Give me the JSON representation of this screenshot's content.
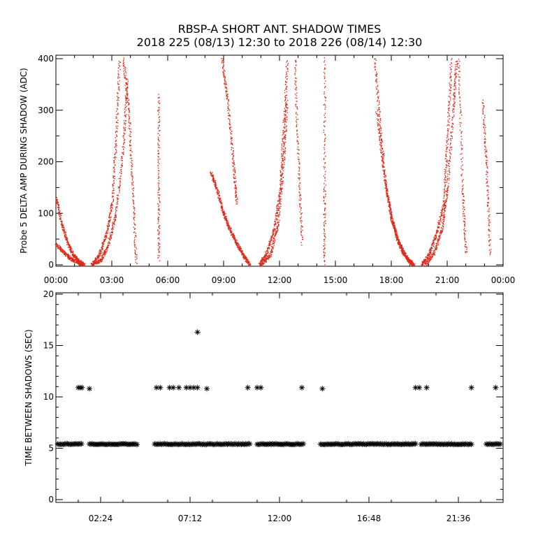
{
  "title": "RBSP-A SHORT ANT. SHADOW TIMES",
  "subtitle": "2018 225 (08/13) 12:30 to 2018 226 (08/14) 12:30",
  "colors": {
    "top_series": "#dd2a1a",
    "bottom_series": "#000000",
    "axes": "#000000"
  },
  "chart_data": [
    {
      "type": "scatter",
      "ylabel": "Probe 5 DELTA AMP DURING SHADOW (ADC)",
      "xlabel": "",
      "xlim": [
        0,
        24
      ],
      "ylim": [
        0,
        400
      ],
      "x_ticks": [
        "00:00",
        "03:00",
        "06:00",
        "09:00",
        "12:00",
        "15:00",
        "18:00",
        "21:00",
        "00:00"
      ],
      "y_ticks": [
        "0",
        "100",
        "200",
        "300",
        "400"
      ],
      "marker": "dot",
      "color": "#dd2a1a",
      "series": [
        {
          "segments": [
            {
              "x": [
                0.0,
                0.3,
                0.6,
                0.9,
                1.2,
                1.5
              ],
              "y": [
                130,
                80,
                45,
                20,
                8,
                0
              ]
            },
            {
              "x": [
                0.0,
                0.4,
                0.8,
                1.2,
                1.4
              ],
              "y": [
                40,
                25,
                12,
                5,
                0
              ]
            },
            {
              "x": [
                1.9,
                2.3,
                2.7,
                3.0,
                3.2,
                3.4
              ],
              "y": [
                0,
                20,
                60,
                120,
                240,
                400
              ]
            },
            {
              "x": [
                1.9,
                2.4,
                2.8,
                3.2,
                3.6,
                3.8
              ],
              "y": [
                0,
                10,
                40,
                100,
                230,
                360
              ]
            },
            {
              "x": [
                3.6,
                3.9,
                4.1,
                4.3
              ],
              "y": [
                400,
                300,
                150,
                0
              ]
            },
            {
              "x": [
                5.5,
                5.5,
                5.5
              ],
              "y": [
                330,
                150,
                10
              ]
            },
            {
              "x": [
                8.3,
                8.6,
                8.9,
                9.2,
                9.5,
                9.8,
                10.1,
                10.4
              ],
              "y": [
                180,
                150,
                110,
                80,
                55,
                35,
                15,
                0
              ]
            },
            {
              "x": [
                8.9,
                9.2,
                9.5,
                9.7
              ],
              "y": [
                400,
                320,
                200,
                120
              ]
            },
            {
              "x": [
                10.9,
                11.3,
                11.7,
                12.0,
                12.2,
                12.4
              ],
              "y": [
                0,
                25,
                70,
                140,
                260,
                400
              ]
            },
            {
              "x": [
                11.0,
                11.5,
                11.9,
                12.2,
                12.4
              ],
              "y": [
                0,
                20,
                80,
                200,
                320
              ]
            },
            {
              "x": [
                12.8,
                13.0,
                13.2
              ],
              "y": [
                400,
                200,
                40
              ]
            },
            {
              "x": [
                14.4,
                14.4,
                14.4
              ],
              "y": [
                400,
                150,
                0
              ]
            },
            {
              "x": [
                17.1,
                17.4,
                17.7,
                18.0,
                18.3,
                18.6,
                18.9,
                19.2
              ],
              "y": [
                400,
                260,
                150,
                90,
                50,
                25,
                10,
                0
              ]
            },
            {
              "x": [
                17.2,
                17.6,
                18.0,
                18.4,
                18.8,
                19.2
              ],
              "y": [
                300,
                170,
                90,
                45,
                15,
                0
              ]
            },
            {
              "x": [
                19.6,
                20.0,
                20.4,
                20.8,
                21.0,
                21.2
              ],
              "y": [
                0,
                20,
                60,
                120,
                250,
                400
              ]
            },
            {
              "x": [
                19.8,
                20.3,
                20.7,
                21.0,
                21.3,
                21.5
              ],
              "y": [
                0,
                25,
                70,
                150,
                300,
                400
              ]
            },
            {
              "x": [
                21.6,
                21.8,
                22.0
              ],
              "y": [
                400,
                150,
                20
              ]
            },
            {
              "x": [
                22.9,
                23.1,
                23.3
              ],
              "y": [
                320,
                180,
                20
              ]
            }
          ]
        }
      ]
    },
    {
      "type": "scatter",
      "ylabel": "TIME BETWEEN SHADOWS (SEC)",
      "xlabel": "",
      "xlim": [
        0,
        24
      ],
      "ylim": [
        0,
        20
      ],
      "x_ticks": [
        "02:24",
        "07:12",
        "12:00",
        "16:48",
        "21:36"
      ],
      "y_ticks": [
        "0",
        "5",
        "10",
        "15",
        "20"
      ],
      "marker": "asterisk",
      "color": "#000000",
      "series": [
        {
          "baseline": {
            "y": 5.4,
            "ranges": [
              [
                0.1,
                1.4
              ],
              [
                1.8,
                4.4
              ],
              [
                5.3,
                10.4
              ],
              [
                10.8,
                13.3
              ],
              [
                14.2,
                19.3
              ],
              [
                19.6,
                22.3
              ],
              [
                23.1,
                23.9
              ]
            ]
          }
        },
        {
          "x": [
            1.2,
            1.3,
            1.4,
            1.8,
            5.4,
            5.6,
            6.1,
            6.3,
            6.6,
            7.0,
            7.2,
            7.4,
            7.6,
            8.1,
            10.3,
            10.8,
            11.0,
            13.2,
            14.3,
            19.3,
            19.5,
            19.9,
            22.3,
            23.6
          ],
          "y": [
            10.9,
            10.9,
            10.9,
            10.8,
            10.9,
            10.9,
            10.9,
            10.9,
            10.9,
            10.9,
            10.9,
            10.9,
            10.9,
            10.8,
            10.9,
            10.9,
            10.9,
            10.9,
            10.8,
            10.9,
            10.9,
            10.9,
            10.9,
            10.9
          ]
        },
        {
          "x": [
            7.6
          ],
          "y": [
            16.3
          ]
        }
      ]
    }
  ]
}
